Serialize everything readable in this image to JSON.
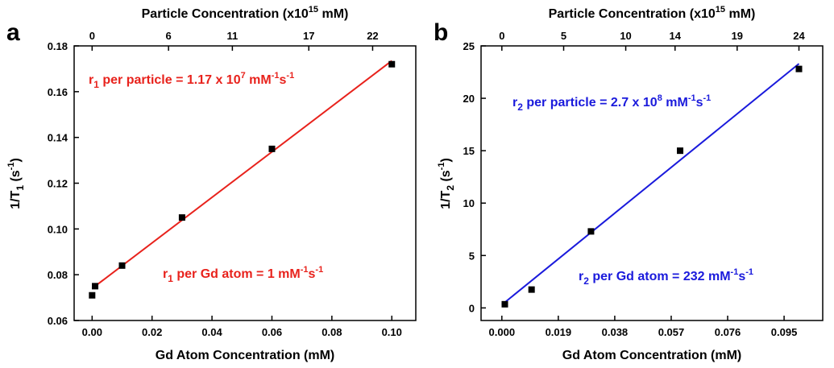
{
  "chart_data": [
    {
      "type": "scatter",
      "panel_label": "a",
      "xlabel": "Gd Atom Concentration (mM)",
      "top_xlabel": {
        "main": "Particle Concentration (x10",
        "sup": "15",
        "tail": " mM)"
      },
      "ylabel": {
        "main": "1/T",
        "sub": "1",
        "tail": " (s",
        "sup": "-1",
        "close": ")"
      },
      "xlim": [
        -0.006,
        0.108
      ],
      "ylim": [
        0.06,
        0.18
      ],
      "xticks": [
        "0.00",
        "0.02",
        "0.04",
        "0.06",
        "0.08",
        "0.10"
      ],
      "yticks": [
        "0.06",
        "0.08",
        "0.10",
        "0.12",
        "0.14",
        "0.16",
        "0.18"
      ],
      "top_ticks": [
        "0",
        "6",
        "11",
        "17",
        "22"
      ],
      "top_tick_positions": [
        0.0,
        0.0255,
        0.0468,
        0.0723,
        0.0936
      ],
      "grid": false,
      "series": [
        {
          "points": [
            [
              0.0,
              0.071
            ],
            [
              0.001,
              0.075
            ],
            [
              0.01,
              0.084
            ],
            [
              0.03,
              0.105
            ],
            [
              0.06,
              0.135
            ],
            [
              0.1,
              0.172
            ]
          ]
        }
      ],
      "fit_line": {
        "x": [
          0.0,
          0.1
        ],
        "y": [
          0.074,
          0.1735
        ],
        "color": "#e8221c"
      },
      "annotations": [
        {
          "color": "#e8221c",
          "a": "r",
          "a_sub": "1",
          "b": " per particle = 1.17 x 10",
          "b_sup": "7",
          "c": " mM",
          "c_sup": "-1",
          "d": "s",
          "d_sup": "-1"
        },
        {
          "color": "#e8221c",
          "a": "r",
          "a_sub": "1",
          "b": " per Gd atom = 1 mM",
          "b_sup": "-1",
          "c": "s",
          "c_sup": "-1"
        }
      ]
    },
    {
      "type": "scatter",
      "panel_label": "b",
      "xlabel": "Gd Atom Concentration (mM)",
      "top_xlabel": {
        "main": "Particle Concentration (x10",
        "sup": "15",
        "tail": " mM)"
      },
      "ylabel": {
        "main": "1/T",
        "sub": "2",
        "tail": " (s",
        "sup": "-1",
        "close": ")"
      },
      "xlim": [
        -0.007,
        0.108
      ],
      "ylim": [
        -1.2,
        25
      ],
      "xticks": [
        "0.000",
        "0.019",
        "0.038",
        "0.057",
        "0.076",
        "0.095"
      ],
      "xtick_values": [
        0.0,
        0.019,
        0.038,
        0.057,
        0.076,
        0.095
      ],
      "yticks": [
        "0",
        "5",
        "10",
        "15",
        "20",
        "25"
      ],
      "top_ticks": [
        "0",
        "5",
        "10",
        "14",
        "19",
        "24"
      ],
      "top_tick_positions": [
        0.0,
        0.0208,
        0.0417,
        0.0583,
        0.0792,
        0.1
      ],
      "grid": false,
      "series": [
        {
          "points": [
            [
              0.001,
              0.35
            ],
            [
              0.01,
              1.75
            ],
            [
              0.03,
              7.3
            ],
            [
              0.06,
              15.0
            ],
            [
              0.1,
              22.8
            ]
          ]
        }
      ],
      "fit_line": {
        "x": [
          0.0,
          0.1
        ],
        "y": [
          0.3,
          23.3
        ],
        "color": "#1a1adc"
      },
      "annotations": [
        {
          "color": "#1a1adc",
          "a": "r",
          "a_sub": "2",
          "b": " per particle = 2.7 x 10",
          "b_sup": "8",
          "c": " mM",
          "c_sup": "-1",
          "d": "s",
          "d_sup": "-1"
        },
        {
          "color": "#1a1adc",
          "a": "r",
          "a_sub": "2",
          "b": " per Gd atom = 232 mM",
          "b_sup": "-1",
          "c": "s",
          "c_sup": "-1"
        }
      ]
    }
  ]
}
